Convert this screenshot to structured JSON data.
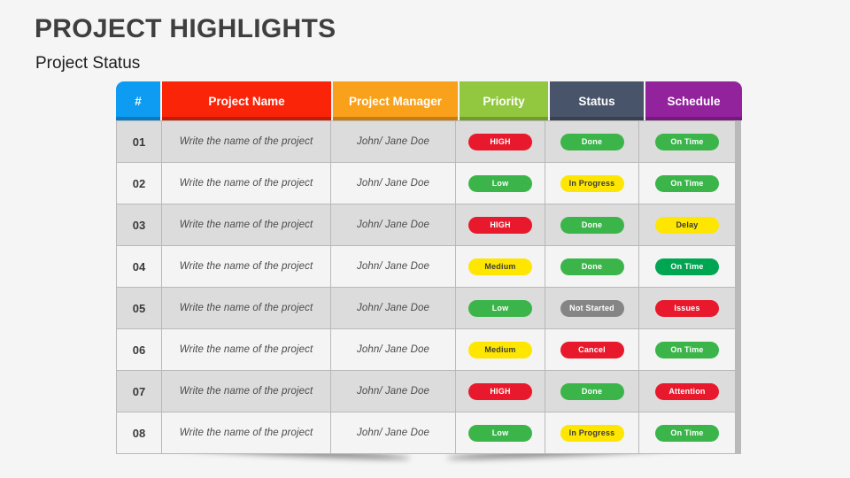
{
  "slide": {
    "title": "PROJECT HIGHLIGHTS",
    "subtitle": "Project Status"
  },
  "table": {
    "columns": [
      {
        "id": "num",
        "label": "#",
        "bg": "#0E9CF2"
      },
      {
        "id": "project-name",
        "label": "Project Name",
        "bg": "#FA2408"
      },
      {
        "id": "project-manager",
        "label": "Project Manager",
        "bg": "#F9A11B"
      },
      {
        "id": "priority",
        "label": "Priority",
        "bg": "#92C83F"
      },
      {
        "id": "status",
        "label": "Status",
        "bg": "#485469"
      },
      {
        "id": "schedule",
        "label": "Schedule",
        "bg": "#93239C"
      }
    ],
    "rows": [
      {
        "num": "01",
        "name": "Write the name of the project",
        "manager": "John/ Jane Doe",
        "priority": {
          "label": "HIGH",
          "bg": "#E8192C",
          "fg": "#FFFFFF"
        },
        "status": {
          "label": "Done",
          "bg": "#3BB54A",
          "fg": "#FFFFFF"
        },
        "schedule": {
          "label": "On Time",
          "bg": "#3BB54A",
          "fg": "#FFFFFF"
        }
      },
      {
        "num": "02",
        "name": "Write the name of the project",
        "manager": "John/ Jane Doe",
        "priority": {
          "label": "Low",
          "bg": "#3BB54A",
          "fg": "#FFFFFF"
        },
        "status": {
          "label": "In Progress",
          "bg": "#FFE600",
          "fg": "#3B3B3B"
        },
        "schedule": {
          "label": "On Time",
          "bg": "#3BB54A",
          "fg": "#FFFFFF"
        }
      },
      {
        "num": "03",
        "name": "Write the name of the project",
        "manager": "John/ Jane Doe",
        "priority": {
          "label": "HIGH",
          "bg": "#E8192C",
          "fg": "#FFFFFF"
        },
        "status": {
          "label": "Done",
          "bg": "#3BB54A",
          "fg": "#FFFFFF"
        },
        "schedule": {
          "label": "Delay",
          "bg": "#FFE600",
          "fg": "#3B3B3B"
        }
      },
      {
        "num": "04",
        "name": "Write the name of the project",
        "manager": "John/ Jane Doe",
        "priority": {
          "label": "Medium",
          "bg": "#FFE600",
          "fg": "#3B3B3B"
        },
        "status": {
          "label": "Done",
          "bg": "#3BB54A",
          "fg": "#FFFFFF"
        },
        "schedule": {
          "label": "On Time",
          "bg": "#00A552",
          "fg": "#FFFFFF"
        }
      },
      {
        "num": "05",
        "name": "Write the name of the project",
        "manager": "John/ Jane Doe",
        "priority": {
          "label": "Low",
          "bg": "#3BB54A",
          "fg": "#FFFFFF"
        },
        "status": {
          "label": "Not Started",
          "bg": "#858585",
          "fg": "#FFFFFF"
        },
        "schedule": {
          "label": "Issues",
          "bg": "#E8192C",
          "fg": "#FFFFFF"
        }
      },
      {
        "num": "06",
        "name": "Write the name of the project",
        "manager": "John/ Jane Doe",
        "priority": {
          "label": "Medium",
          "bg": "#FFE600",
          "fg": "#3B3B3B"
        },
        "status": {
          "label": "Cancel",
          "bg": "#E8192C",
          "fg": "#FFFFFF"
        },
        "schedule": {
          "label": "On Time",
          "bg": "#3BB54A",
          "fg": "#FFFFFF"
        }
      },
      {
        "num": "07",
        "name": "Write the name of the project",
        "manager": "John/ Jane Doe",
        "priority": {
          "label": "HIGH",
          "bg": "#E8192C",
          "fg": "#FFFFFF"
        },
        "status": {
          "label": "Done",
          "bg": "#3BB54A",
          "fg": "#FFFFFF"
        },
        "schedule": {
          "label": "Attention",
          "bg": "#E8192C",
          "fg": "#FFFFFF"
        }
      },
      {
        "num": "08",
        "name": "Write the name of the project",
        "manager": "John/ Jane Doe",
        "priority": {
          "label": "Low",
          "bg": "#3BB54A",
          "fg": "#FFFFFF"
        },
        "status": {
          "label": "In Progress",
          "bg": "#FFE600",
          "fg": "#3B3B3B"
        },
        "schedule": {
          "label": "On Time",
          "bg": "#3BB54A",
          "fg": "#FFFFFF"
        }
      }
    ]
  },
  "palette": {
    "background": "#F5F5F5",
    "title_color": "#3F3F3F",
    "row_odd": "#DCDCDC",
    "row_even": "#F4F4F4",
    "grid_line": "#B9B9B9",
    "pill_green": "#3BB54A",
    "pill_emerald": "#00A552",
    "pill_red": "#E8192C",
    "pill_yellow": "#FFE600",
    "pill_gray": "#858585"
  }
}
